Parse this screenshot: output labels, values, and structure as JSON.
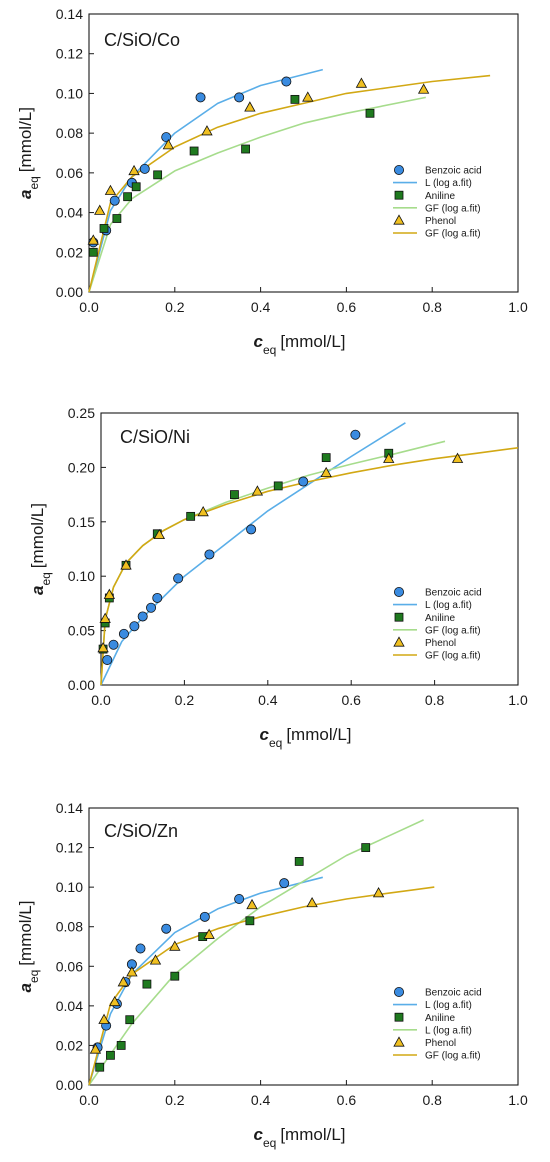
{
  "colors": {
    "benzoic_marker": "#3a8be0",
    "benzoic_line": "#5aaee8",
    "aniline_marker": "#1f7a1f",
    "aniline_line": "#a6dc8c",
    "phenol_marker": "#f0c020",
    "phenol_line": "#d2a814",
    "axis": "#1a1a1a"
  },
  "chart_data": [
    {
      "type": "scatter",
      "title": "C/SiO/Co",
      "xlabel_main": "c",
      "xlabel_sub": "eq",
      "xlabel_unit": "[mmol/L]",
      "ylabel_main": "a",
      "ylabel_sub": "eq",
      "ylabel_unit": "[mmol/L]",
      "xlim": [
        0,
        1.0
      ],
      "ylim": [
        0,
        0.14
      ],
      "xticks": [
        0.0,
        0.2,
        0.4,
        0.6,
        0.8,
        1.0
      ],
      "xtick_labels": [
        "0.0",
        "0.2",
        "0.4",
        "0.6",
        "0.8",
        "1.0"
      ],
      "yticks": [
        0.0,
        0.02,
        0.04,
        0.06,
        0.08,
        0.1,
        0.12,
        0.14
      ],
      "ytick_labels": [
        "0.00",
        "0.02",
        "0.04",
        "0.06",
        "0.08",
        "0.10",
        "0.12",
        "0.14"
      ],
      "legend_position": "center-right",
      "legend": [
        "Benzoic acid",
        "L (log a.fit)",
        "Aniline",
        "GF (log a.fit)",
        "Phenol",
        "GF (log a.fit)"
      ],
      "series": [
        {
          "name": "Benzoic acid",
          "marker": "circle",
          "x": [
            0.01,
            0.04,
            0.06,
            0.1,
            0.13,
            0.18,
            0.26,
            0.35,
            0.46
          ],
          "y": [
            0.025,
            0.031,
            0.046,
            0.055,
            0.062,
            0.078,
            0.098,
            0.098,
            0.106
          ]
        },
        {
          "name": "Aniline",
          "marker": "square",
          "x": [
            0.01,
            0.035,
            0.065,
            0.09,
            0.11,
            0.16,
            0.245,
            0.365,
            0.48,
            0.655
          ],
          "y": [
            0.02,
            0.032,
            0.037,
            0.048,
            0.053,
            0.059,
            0.071,
            0.072,
            0.097,
            0.09
          ]
        },
        {
          "name": "Phenol",
          "marker": "triangle",
          "x": [
            0.01,
            0.025,
            0.05,
            0.105,
            0.185,
            0.275,
            0.375,
            0.51,
            0.635,
            0.78
          ],
          "y": [
            0.026,
            0.041,
            0.051,
            0.061,
            0.074,
            0.081,
            0.093,
            0.098,
            0.105,
            0.102
          ]
        },
        {
          "name": "L (log a.fit)",
          "role": "fit",
          "x_range": [
            0,
            0.545
          ],
          "x": [
            0,
            0.05,
            0.1,
            0.2,
            0.3,
            0.4,
            0.545
          ],
          "y": [
            0,
            0.041,
            0.058,
            0.08,
            0.095,
            0.104,
            0.112
          ]
        },
        {
          "name": "GF (log a.fit)",
          "role": "fit",
          "x_range": [
            0,
            0.785
          ],
          "x": [
            0,
            0.05,
            0.1,
            0.2,
            0.3,
            0.4,
            0.5,
            0.6,
            0.785
          ],
          "y": [
            0,
            0.034,
            0.047,
            0.061,
            0.07,
            0.078,
            0.085,
            0.09,
            0.098
          ]
        },
        {
          "name": "GF (log a.fit)",
          "role": "fit",
          "x_range": [
            0,
            0.935
          ],
          "x": [
            0,
            0.05,
            0.1,
            0.2,
            0.3,
            0.4,
            0.5,
            0.6,
            0.7,
            0.8,
            0.935
          ],
          "y": [
            0,
            0.045,
            0.058,
            0.073,
            0.083,
            0.09,
            0.095,
            0.1,
            0.103,
            0.106,
            0.109
          ]
        }
      ]
    },
    {
      "type": "scatter",
      "title": "C/SiO/Ni",
      "xlabel_main": "c",
      "xlabel_sub": "eq",
      "xlabel_unit": "[mmol/L]",
      "ylabel_main": "a",
      "ylabel_sub": "eq",
      "ylabel_unit": "[mmol/L]",
      "xlim": [
        0,
        1.0
      ],
      "ylim": [
        0,
        0.25
      ],
      "xticks": [
        0.0,
        0.2,
        0.4,
        0.6,
        0.8,
        1.0
      ],
      "xtick_labels": [
        "0.0",
        "0.2",
        "0.4",
        "0.6",
        "0.8",
        "1.0"
      ],
      "yticks": [
        0.0,
        0.05,
        0.1,
        0.15,
        0.2,
        0.25
      ],
      "ytick_labels": [
        "0.00",
        "0.05",
        "0.10",
        "0.15",
        "0.20",
        "0.25"
      ],
      "legend_position": "lower-right",
      "legend": [
        "Benzoic acid",
        "L (log a.fit)",
        "Aniline",
        "GF (log a.fit)",
        "Phenol",
        "GF (log a.fit)"
      ],
      "series": [
        {
          "name": "Benzoic acid",
          "marker": "circle",
          "x": [
            0.015,
            0.03,
            0.055,
            0.08,
            0.1,
            0.12,
            0.135,
            0.185,
            0.26,
            0.36,
            0.485,
            0.61
          ],
          "y": [
            0.023,
            0.037,
            0.047,
            0.054,
            0.063,
            0.071,
            0.08,
            0.098,
            0.12,
            0.143,
            0.187,
            0.23
          ]
        },
        {
          "name": "Aniline",
          "marker": "square",
          "x": [
            0.005,
            0.01,
            0.02,
            0.06,
            0.135,
            0.215,
            0.32,
            0.425,
            0.54,
            0.69
          ],
          "y": [
            0.033,
            0.057,
            0.08,
            0.11,
            0.139,
            0.155,
            0.175,
            0.183,
            0.209,
            0.213
          ]
        },
        {
          "name": "Phenol",
          "marker": "triangle",
          "x": [
            0.005,
            0.01,
            0.02,
            0.06,
            0.14,
            0.245,
            0.375,
            0.54,
            0.69,
            0.855
          ],
          "y": [
            0.034,
            0.061,
            0.083,
            0.11,
            0.138,
            0.159,
            0.178,
            0.195,
            0.208,
            0.208
          ]
        },
        {
          "name": "L (log a.fit)",
          "role": "fit",
          "x_range": [
            0,
            0.73
          ],
          "x": [
            0,
            0.05,
            0.1,
            0.2,
            0.3,
            0.4,
            0.5,
            0.6,
            0.73
          ],
          "y": [
            0,
            0.04,
            0.062,
            0.1,
            0.13,
            0.16,
            0.185,
            0.21,
            0.241
          ]
        },
        {
          "name": "GF (log a.fit)",
          "role": "fit",
          "x_range": [
            0,
            0.825
          ],
          "x": [
            0,
            0.01,
            0.03,
            0.06,
            0.1,
            0.15,
            0.2,
            0.3,
            0.4,
            0.5,
            0.6,
            0.7,
            0.825
          ],
          "y": [
            0,
            0.06,
            0.09,
            0.112,
            0.128,
            0.142,
            0.152,
            0.168,
            0.181,
            0.193,
            0.203,
            0.212,
            0.224
          ]
        },
        {
          "name": "GF (log a.fit)",
          "role": "fit",
          "x_range": [
            0,
            1.0
          ],
          "x": [
            0,
            0.01,
            0.03,
            0.06,
            0.1,
            0.15,
            0.2,
            0.3,
            0.4,
            0.5,
            0.6,
            0.7,
            0.8,
            0.9,
            1.0
          ],
          "y": [
            0,
            0.06,
            0.09,
            0.112,
            0.128,
            0.142,
            0.152,
            0.166,
            0.178,
            0.187,
            0.195,
            0.202,
            0.208,
            0.213,
            0.218
          ]
        }
      ]
    },
    {
      "type": "scatter",
      "title": "C/SiO/Zn",
      "xlabel_main": "c",
      "xlabel_sub": "eq",
      "xlabel_unit": "[mmol/L]",
      "ylabel_main": "a",
      "ylabel_sub": "eq",
      "ylabel_unit": "[mmol/L]",
      "xlim": [
        0,
        1.0
      ],
      "ylim": [
        0,
        0.14
      ],
      "xticks": [
        0.0,
        0.2,
        0.4,
        0.6,
        0.8,
        1.0
      ],
      "xtick_labels": [
        "0.0",
        "0.2",
        "0.4",
        "0.6",
        "0.8",
        "1.0"
      ],
      "yticks": [
        0.0,
        0.02,
        0.04,
        0.06,
        0.08,
        0.1,
        0.12,
        0.14
      ],
      "ytick_labels": [
        "0.00",
        "0.02",
        "0.04",
        "0.06",
        "0.08",
        "0.10",
        "0.12",
        "0.14"
      ],
      "legend_position": "lower-right",
      "legend": [
        "Benzoic acid",
        "L (log a.fit)",
        "Aniline",
        "L (log a.fit)",
        "Phenol",
        "GF (log a.fit)"
      ],
      "series": [
        {
          "name": "Benzoic acid",
          "marker": "circle",
          "x": [
            0.02,
            0.04,
            0.065,
            0.085,
            0.1,
            0.12,
            0.18,
            0.27,
            0.35,
            0.455
          ],
          "y": [
            0.019,
            0.03,
            0.041,
            0.052,
            0.061,
            0.069,
            0.079,
            0.085,
            0.094,
            0.102
          ]
        },
        {
          "name": "Aniline",
          "marker": "square",
          "x": [
            0.025,
            0.05,
            0.075,
            0.095,
            0.135,
            0.2,
            0.265,
            0.375,
            0.49,
            0.645
          ],
          "y": [
            0.009,
            0.015,
            0.02,
            0.033,
            0.051,
            0.055,
            0.075,
            0.083,
            0.113,
            0.12
          ]
        },
        {
          "name": "Phenol",
          "marker": "triangle",
          "x": [
            0.015,
            0.035,
            0.06,
            0.08,
            0.1,
            0.155,
            0.2,
            0.28,
            0.38,
            0.52,
            0.675
          ],
          "y": [
            0.018,
            0.033,
            0.042,
            0.052,
            0.057,
            0.063,
            0.07,
            0.076,
            0.091,
            0.092,
            0.097
          ]
        },
        {
          "name": "L (log a.fit)",
          "role": "fit",
          "x_range": [
            0,
            0.545
          ],
          "x": [
            0,
            0.05,
            0.1,
            0.2,
            0.3,
            0.4,
            0.545
          ],
          "y": [
            0,
            0.036,
            0.056,
            0.077,
            0.089,
            0.097,
            0.105
          ]
        },
        {
          "name": "L (log a.fit)",
          "role": "fit",
          "x_range": [
            0,
            0.78
          ],
          "x": [
            0,
            0.1,
            0.2,
            0.3,
            0.4,
            0.5,
            0.6,
            0.7,
            0.78
          ],
          "y": [
            0,
            0.031,
            0.056,
            0.074,
            0.09,
            0.103,
            0.116,
            0.126,
            0.134
          ]
        },
        {
          "name": "GF (log a.fit)",
          "role": "fit",
          "x_range": [
            0,
            0.805
          ],
          "x": [
            0,
            0.05,
            0.1,
            0.2,
            0.3,
            0.4,
            0.5,
            0.6,
            0.7,
            0.805
          ],
          "y": [
            0,
            0.041,
            0.056,
            0.071,
            0.079,
            0.085,
            0.09,
            0.094,
            0.097,
            0.1
          ]
        }
      ]
    }
  ]
}
